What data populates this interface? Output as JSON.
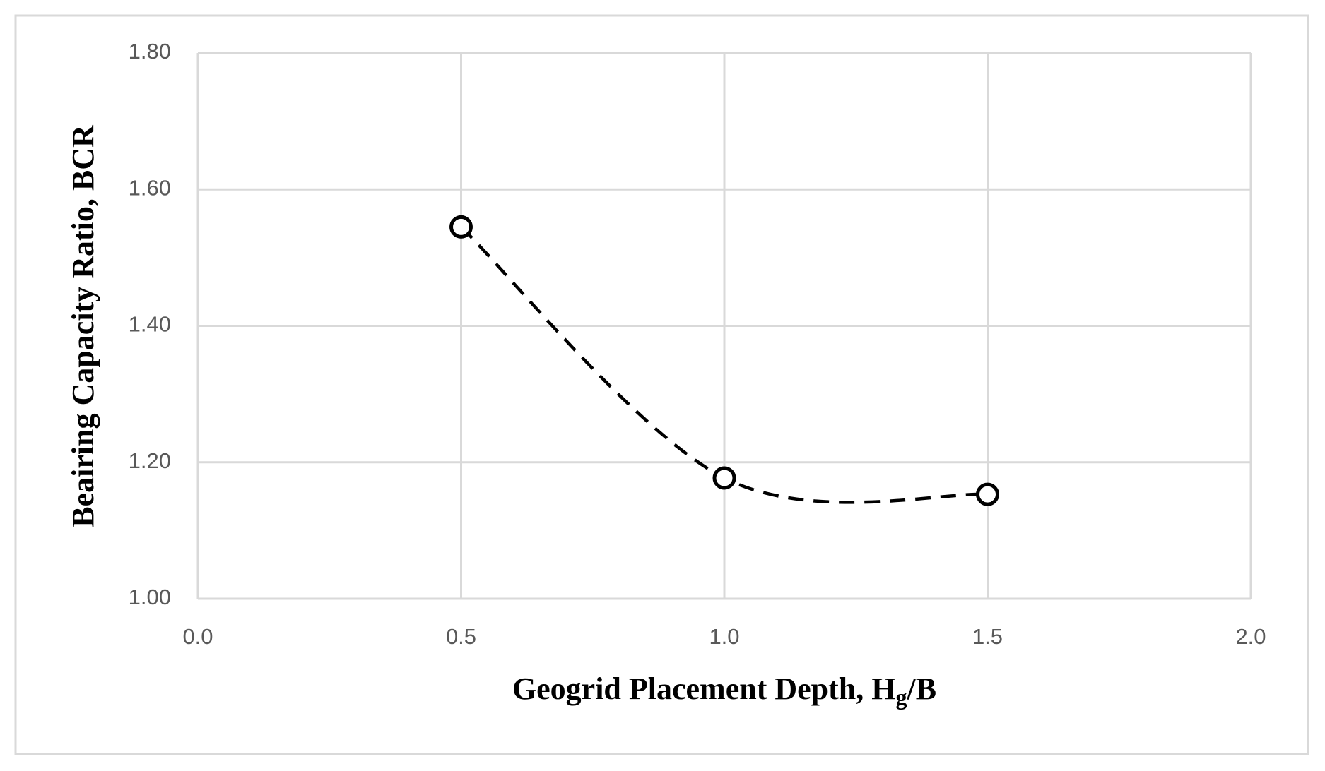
{
  "chart_data": {
    "type": "scatter",
    "xlabel": [
      "Geogrid Placement Depth, H",
      "g",
      "/B"
    ],
    "ylabel": "Beairing Capacity Ratio, BCR",
    "x": [
      0.5,
      1.0,
      1.5
    ],
    "values": [
      1.545,
      1.177,
      1.153
    ],
    "color": "#000000",
    "smooth": true,
    "line_style": "dashed",
    "xlim": [
      0,
      2
    ],
    "xticks": [
      {
        "value": 0,
        "label": "0.0"
      },
      0.5,
      {
        "value": 1,
        "label": "1.0"
      },
      1.5,
      {
        "value": 2,
        "label": "2.0"
      }
    ],
    "ylim": [
      1,
      1.8
    ],
    "yticks": [
      {
        "value": 1,
        "label": "1.00"
      },
      {
        "value": 1.2,
        "label": "1.20"
      },
      {
        "value": 1.4,
        "label": "1.40"
      },
      {
        "value": 1.6,
        "label": "1.60"
      },
      {
        "value": 1.8,
        "label": "1.80"
      }
    ],
    "grid": true
  }
}
